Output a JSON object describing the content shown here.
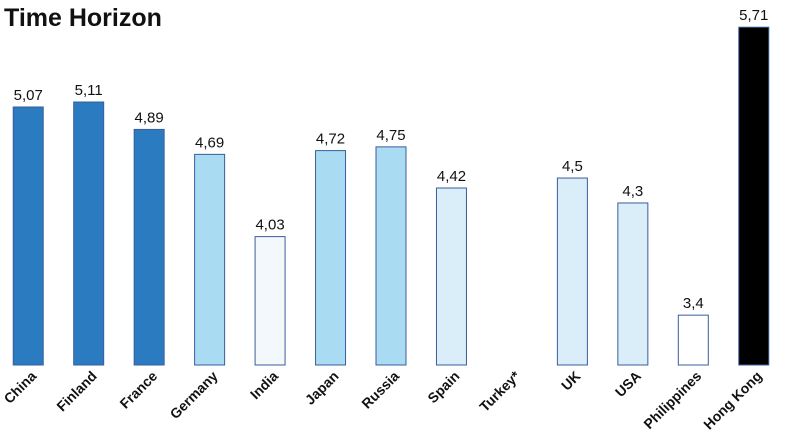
{
  "chart_data": {
    "type": "bar",
    "title": "Time Horizon",
    "categories": [
      "China",
      "Finland",
      "France",
      "Germany",
      "India",
      "Japan",
      "Russia",
      "Spain",
      "Turkey*",
      "UK",
      "USA",
      "Philippines",
      "Hong Kong"
    ],
    "values": [
      5.07,
      5.11,
      4.89,
      4.69,
      4.03,
      4.72,
      4.75,
      4.42,
      null,
      4.5,
      4.3,
      3.4,
      5.71
    ],
    "value_labels": [
      "5,07",
      "5,11",
      "4,89",
      "4,69",
      "4,03",
      "4,72",
      "4,75",
      "4,42",
      null,
      "4,5",
      "4,3",
      "3,4",
      "5,71"
    ],
    "colors": [
      "#2b7bc0",
      "#2b7bc0",
      "#2b7bc0",
      "#a9dcf3",
      "#f3f8fd",
      "#a9dcf3",
      "#a9dcf3",
      "#d9eef9",
      null,
      "#d9eef9",
      "#d9eef9",
      "#ffffff",
      "#000000"
    ],
    "ylim": [
      3,
      5.8
    ]
  }
}
